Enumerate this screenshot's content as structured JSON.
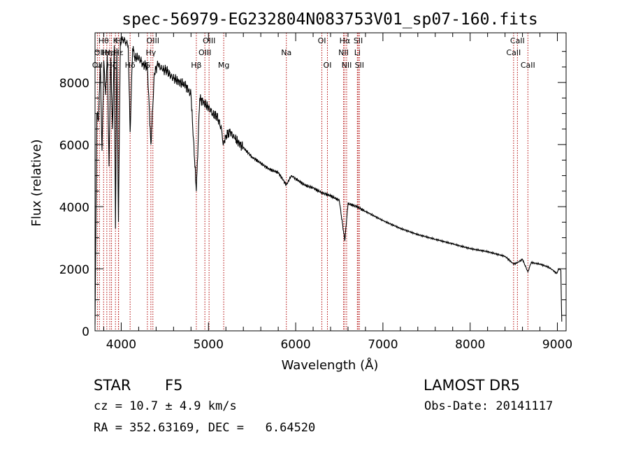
{
  "chart_data": {
    "type": "line",
    "title": "spec-56979-EG232804N083753V01_sp07-160.fits",
    "xlabel": "Wavelength (Å)",
    "ylabel": "Flux (relative)",
    "xlim": [
      3700,
      9100
    ],
    "ylim": [
      0,
      9600
    ],
    "xticks": [
      4000,
      5000,
      6000,
      7000,
      8000,
      9000
    ],
    "yticks": [
      0,
      2000,
      4000,
      6000,
      8000
    ],
    "grid": false,
    "series": [
      {
        "x": [
          3700,
          3720,
          3740,
          3760,
          3780,
          3800,
          3820,
          3840,
          3860,
          3880,
          3900,
          3920,
          3934,
          3950,
          3968,
          3990,
          4020,
          4050,
          4080,
          4102,
          4130,
          4160,
          4200,
          4250,
          4300,
          4340,
          4380,
          4420,
          4470,
          4520,
          4570,
          4620,
          4680,
          4740,
          4800,
          4861,
          4900,
          4960,
          5000,
          5050,
          5100,
          5150,
          5172,
          5200,
          5250,
          5300,
          5400,
          5500,
          5600,
          5700,
          5800,
          5893,
          5950,
          6000,
          6100,
          6200,
          6300,
          6400,
          6500,
          6563,
          6600,
          6700,
          6800,
          6900,
          7000,
          7200,
          7400,
          7600,
          7800,
          8000,
          8200,
          8400,
          8498,
          8542,
          8600,
          8662,
          8700,
          8800,
          8900,
          8950,
          8990,
          9020,
          9040,
          9050
        ],
        "y": [
          200,
          7000,
          6800,
          8600,
          5800,
          8700,
          7600,
          8900,
          5300,
          8800,
          6500,
          9200,
          3300,
          9100,
          3500,
          9300,
          9400,
          9300,
          9200,
          6400,
          9100,
          8800,
          8800,
          8600,
          8500,
          6000,
          8300,
          8600,
          8400,
          8400,
          8200,
          8100,
          8000,
          7900,
          7600,
          4500,
          7500,
          7300,
          7200,
          7000,
          6900,
          6500,
          6000,
          6300,
          6400,
          6200,
          5900,
          5600,
          5400,
          5200,
          5100,
          4700,
          5000,
          4900,
          4700,
          4600,
          4450,
          4350,
          4200,
          2900,
          4100,
          4000,
          3850,
          3700,
          3550,
          3300,
          3100,
          2950,
          2800,
          2650,
          2550,
          2400,
          2150,
          2200,
          2300,
          1900,
          2200,
          2150,
          2050,
          1950,
          1850,
          2000,
          1950,
          300
        ]
      }
    ],
    "line_markers": [
      {
        "wavelength": 3727,
        "label": "OII",
        "row": 3
      },
      {
        "wavelength": 3750,
        "label": "OII",
        "row": 2
      },
      {
        "wavelength": 3798,
        "label": "Hθ",
        "row": 1
      },
      {
        "wavelength": 3835,
        "label": "Hη",
        "row": 2
      },
      {
        "wavelength": 3869,
        "label": "Ne",
        "row": 2
      },
      {
        "wavelength": 3889,
        "label": "Hζ",
        "row": 3
      },
      {
        "wavelength": 3934,
        "label": "K",
        "row": 1
      },
      {
        "wavelength": 3968,
        "label": "H",
        "row": 1
      },
      {
        "wavelength": 3970,
        "label": "Hε",
        "row": 2
      },
      {
        "wavelength": 4102,
        "label": "Hδ",
        "row": 3
      },
      {
        "wavelength": 4300,
        "label": "G",
        "row": 3
      },
      {
        "wavelength": 4340,
        "label": "Hγ",
        "row": 2
      },
      {
        "wavelength": 4363,
        "label": "OIII",
        "row": 1
      },
      {
        "wavelength": 4861,
        "label": "Hβ",
        "row": 3
      },
      {
        "wavelength": 4959,
        "label": "OIII",
        "row": 2
      },
      {
        "wavelength": 5007,
        "label": "OIII",
        "row": 1
      },
      {
        "wavelength": 5175,
        "label": "Mg",
        "row": 3
      },
      {
        "wavelength": 5893,
        "label": "Na",
        "row": 2
      },
      {
        "wavelength": 6300,
        "label": "OI",
        "row": 1
      },
      {
        "wavelength": 6364,
        "label": "OI",
        "row": 3
      },
      {
        "wavelength": 6548,
        "label": "NII",
        "row": 2
      },
      {
        "wavelength": 6563,
        "label": "Hα",
        "row": 1
      },
      {
        "wavelength": 6584,
        "label": "NII",
        "row": 3
      },
      {
        "wavelength": 6707,
        "label": "Li",
        "row": 2
      },
      {
        "wavelength": 6717,
        "label": "SII",
        "row": 1
      },
      {
        "wavelength": 6731,
        "label": "SII",
        "row": 3
      },
      {
        "wavelength": 8498,
        "label": "CaII",
        "row": 2
      },
      {
        "wavelength": 8542,
        "label": "CaII",
        "row": 1
      },
      {
        "wavelength": 8662,
        "label": "CaII",
        "row": 3
      }
    ],
    "colors": {
      "spectrum": "#000000",
      "line_markers": "#b00000",
      "axes": "#000000"
    }
  },
  "info": {
    "object_class": "STAR",
    "subclass": "F5",
    "survey": "LAMOST DR5",
    "redshift": "cz = 10.7 ± 4.9 km/s",
    "obs_date": "Obs-Date: 20141117",
    "coords": "RA = 352.63169, DEC =   6.64520"
  }
}
